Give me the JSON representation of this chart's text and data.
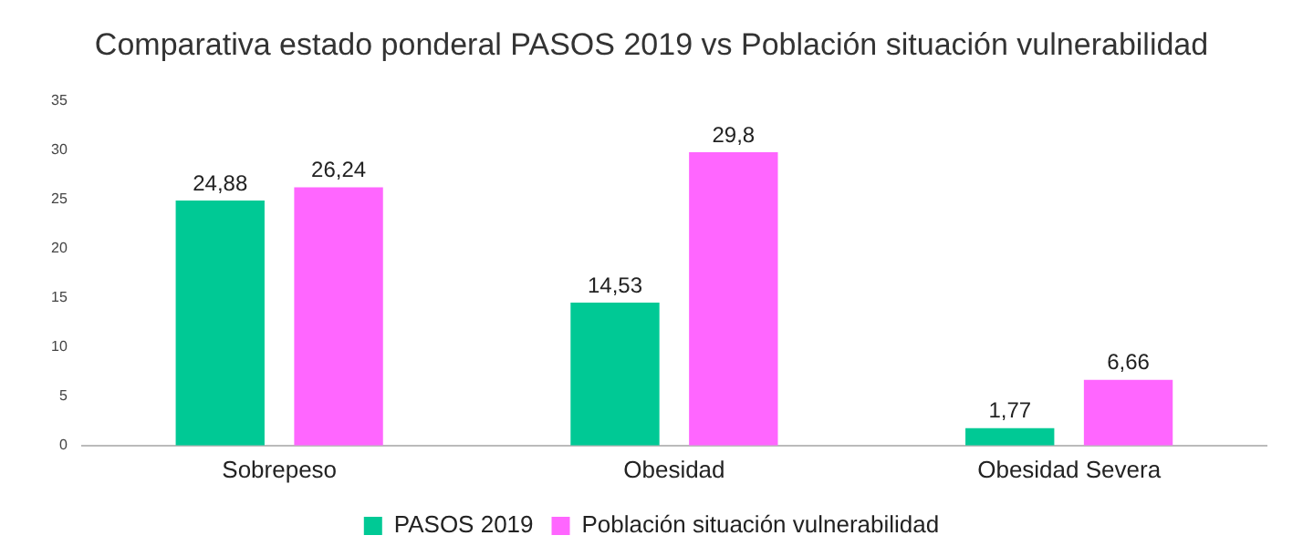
{
  "chart_data": {
    "type": "bar",
    "title": "Comparativa estado ponderal PASOS 2019 vs Población situación vulnerabilidad",
    "categories": [
      "Sobrepeso",
      "Obesidad",
      "Obesidad Severa"
    ],
    "series": [
      {
        "name": "PASOS 2019",
        "color": "#00c995",
        "values": [
          24.88,
          14.53,
          1.77
        ],
        "value_labels": [
          "24,88",
          "14,53",
          "1,77"
        ]
      },
      {
        "name": "Población situación vulnerabilidad",
        "color": "#ff66ff",
        "values": [
          26.24,
          29.8,
          6.66
        ],
        "value_labels": [
          "26,24",
          "29,8",
          "6,66"
        ]
      }
    ],
    "ylim": [
      0,
      35
    ],
    "yticks": [
      0,
      5,
      10,
      15,
      20,
      25,
      30,
      35
    ],
    "grid": false,
    "legend": "bottom"
  }
}
